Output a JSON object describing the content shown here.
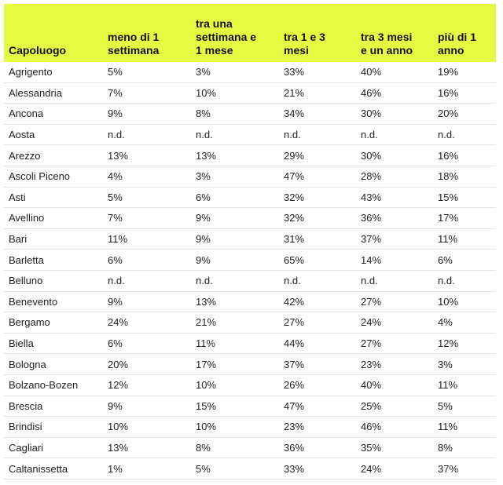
{
  "table": {
    "headers": [
      "Capoluogo",
      "meno di 1\nsettimana",
      "tra una\nsettimana e\n1 mese",
      "tra 1 e 3\nmesi",
      "tra 3 mesi\ne un anno",
      "più di 1\nanno"
    ],
    "rows": [
      [
        "Agrigento",
        "5%",
        "3%",
        "33%",
        "40%",
        "19%"
      ],
      [
        "Alessandria",
        "7%",
        "10%",
        "21%",
        "46%",
        "16%"
      ],
      [
        "Ancona",
        "9%",
        "8%",
        "34%",
        "30%",
        "20%"
      ],
      [
        "Aosta",
        "n.d.",
        "n.d.",
        "n.d.",
        "n.d.",
        "n.d."
      ],
      [
        "Arezzo",
        "13%",
        "13%",
        "29%",
        "30%",
        "16%"
      ],
      [
        "Ascoli Piceno",
        "4%",
        "3%",
        "47%",
        "28%",
        "18%"
      ],
      [
        "Asti",
        "5%",
        "6%",
        "32%",
        "43%",
        "15%"
      ],
      [
        "Avellino",
        "7%",
        "9%",
        "32%",
        "36%",
        "17%"
      ],
      [
        "Bari",
        "11%",
        "9%",
        "31%",
        "37%",
        "11%"
      ],
      [
        "Barletta",
        "6%",
        "9%",
        "65%",
        "14%",
        "6%"
      ],
      [
        "Belluno",
        "n.d.",
        "n.d.",
        "n.d.",
        "n.d.",
        "n.d."
      ],
      [
        "Benevento",
        "9%",
        "13%",
        "42%",
        "27%",
        "10%"
      ],
      [
        "Bergamo",
        "24%",
        "21%",
        "27%",
        "24%",
        "4%"
      ],
      [
        "Biella",
        "6%",
        "11%",
        "44%",
        "27%",
        "12%"
      ],
      [
        "Bologna",
        "20%",
        "17%",
        "37%",
        "23%",
        "3%"
      ],
      [
        "Bolzano-Bozen",
        "12%",
        "10%",
        "26%",
        "40%",
        "11%"
      ],
      [
        "Brescia",
        "9%",
        "15%",
        "47%",
        "25%",
        "5%"
      ],
      [
        "Brindisi",
        "10%",
        "10%",
        "23%",
        "46%",
        "11%"
      ],
      [
        "Cagliari",
        "13%",
        "8%",
        "36%",
        "35%",
        "8%"
      ],
      [
        "Caltanissetta",
        "1%",
        "5%",
        "33%",
        "24%",
        "37%"
      ]
    ]
  }
}
